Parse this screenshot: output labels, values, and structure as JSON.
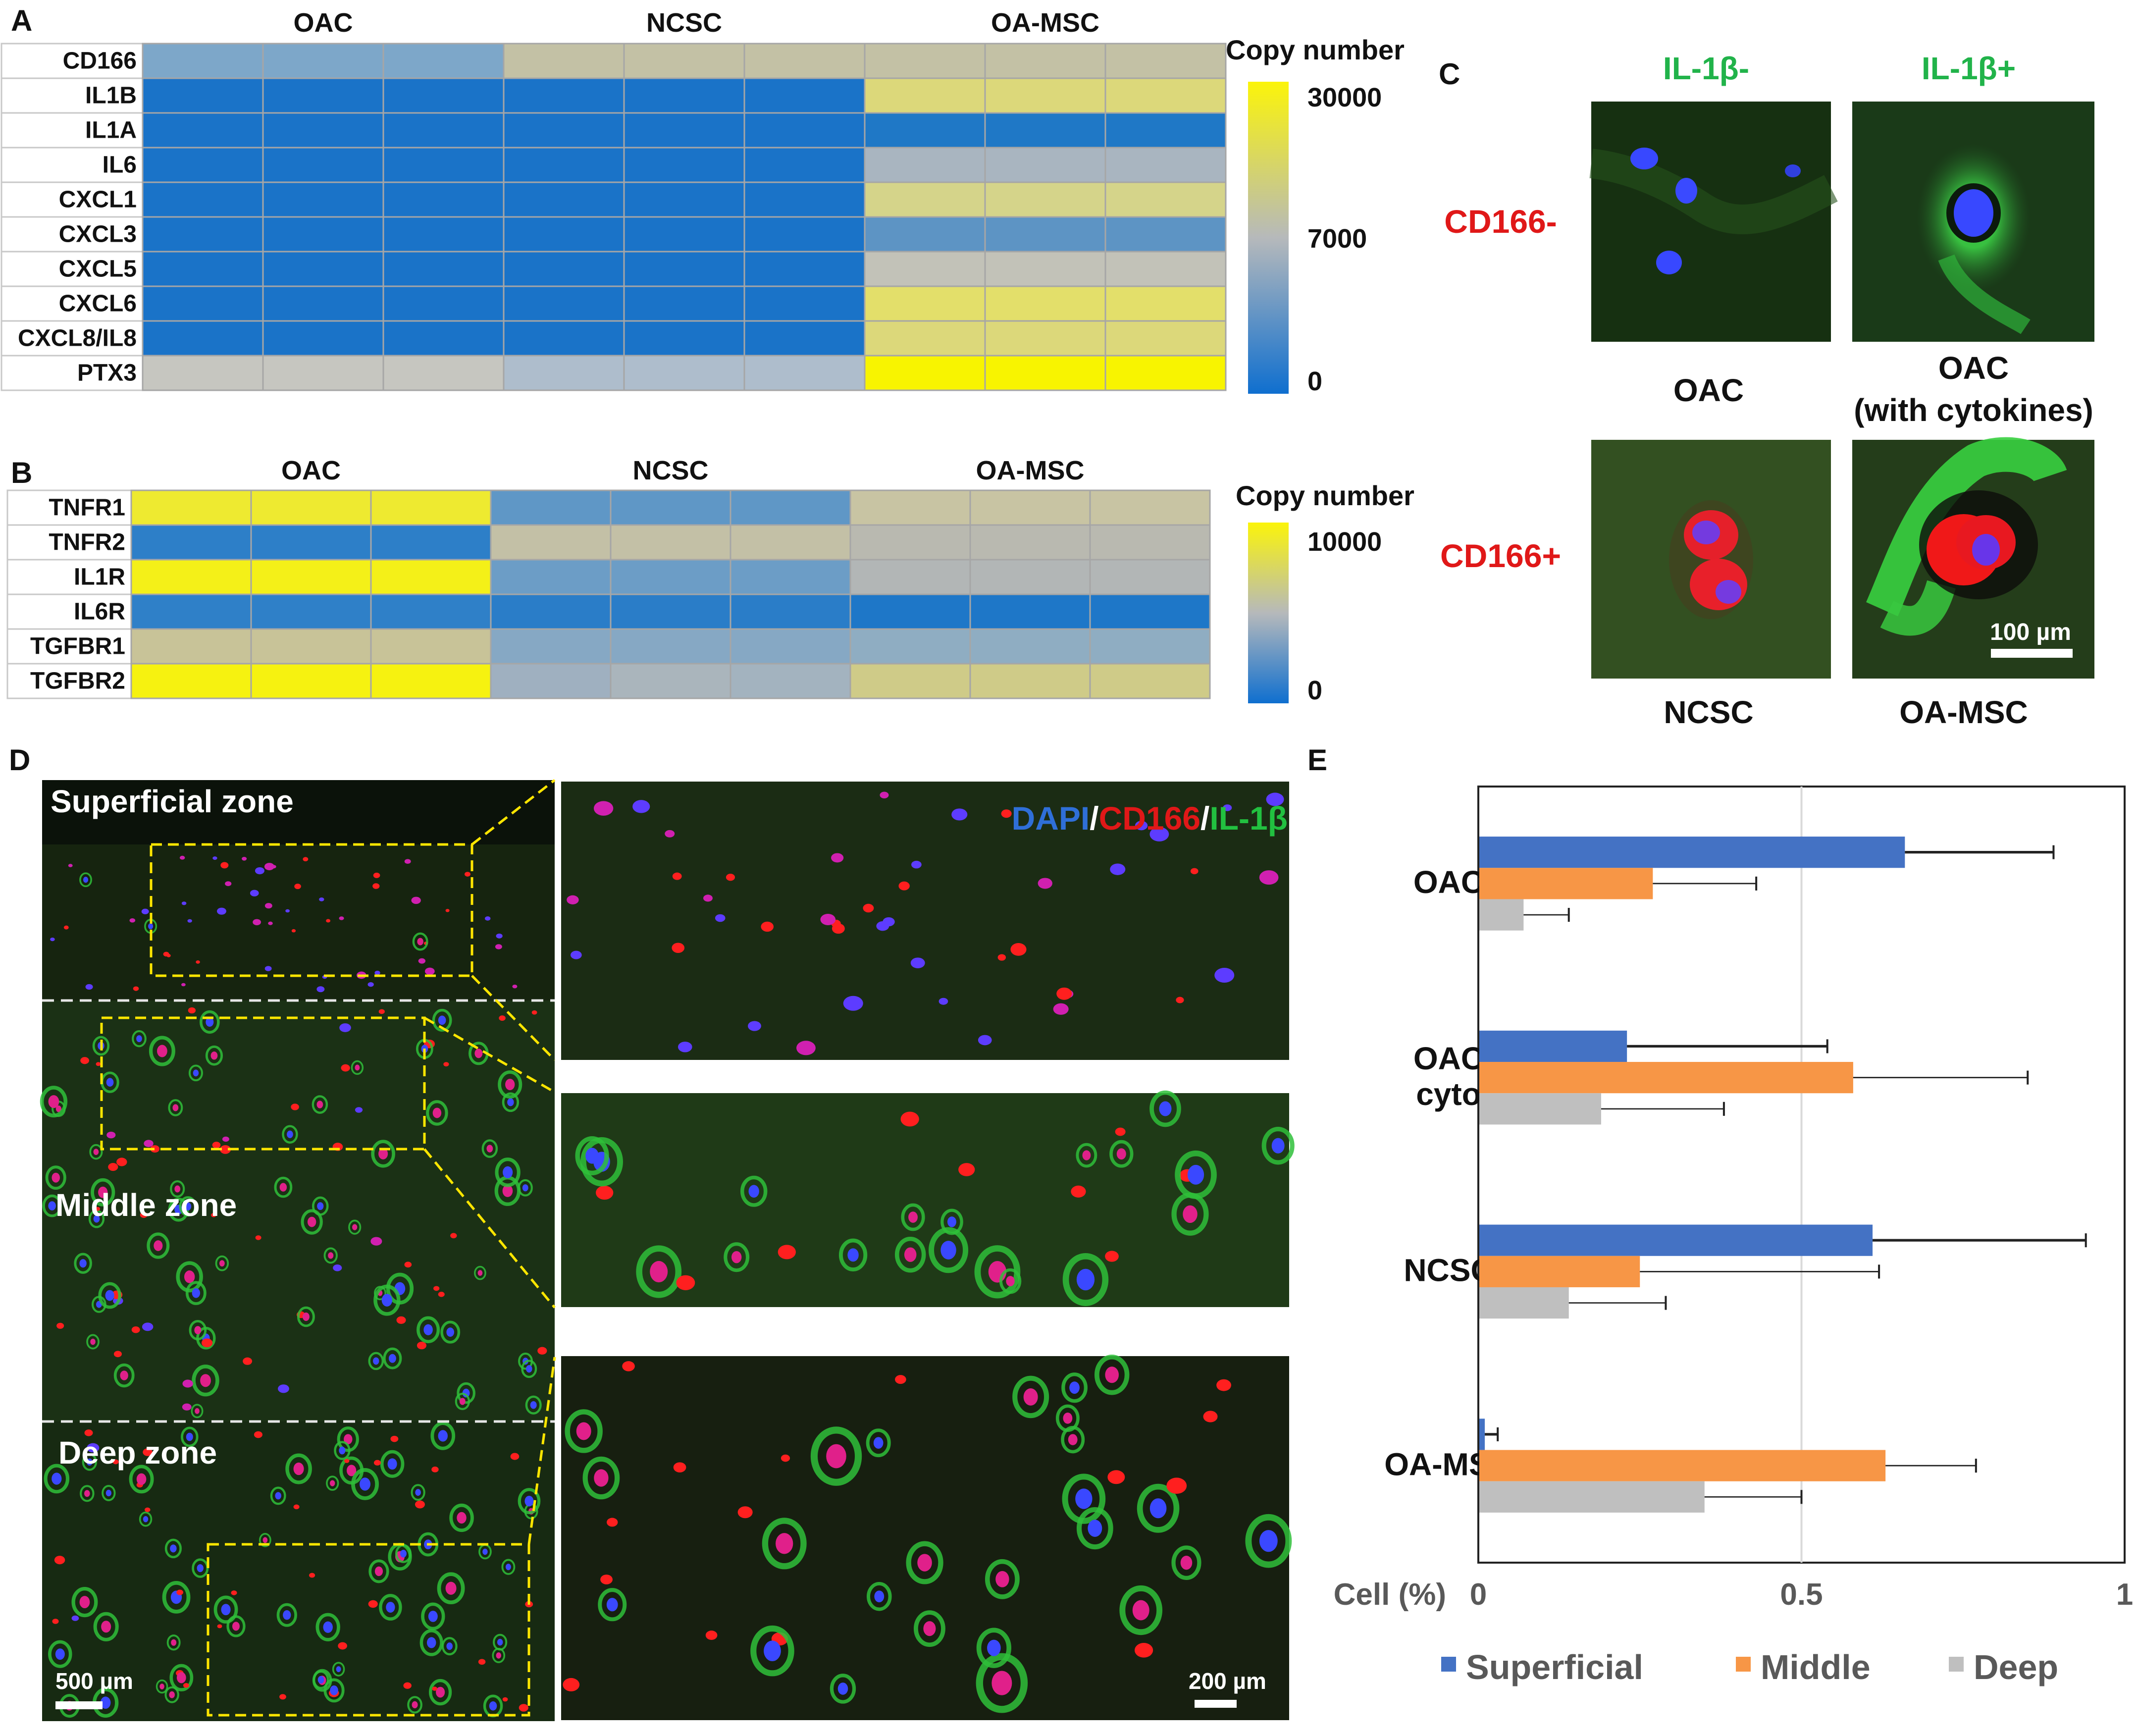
{
  "panels": {
    "A": {
      "letter": "A",
      "groups": [
        "OAC",
        "NCSC",
        "OA-MSC"
      ],
      "genes": [
        "CD166",
        "IL1B",
        "IL1A",
        "IL6",
        "CXCL1",
        "CXCL3",
        "CXCL5",
        "CXCL6",
        "CXCL8/IL8",
        "PTX3"
      ],
      "legend_title": "Copy number",
      "legend_ticks": [
        "30000",
        "7000",
        "0"
      ],
      "colors": [
        [
          "#7da7c9",
          "#7da7c9",
          "#7da7c9",
          "#c3c1a5",
          "#c3c1a5",
          "#c3c1a5",
          "#c3c1a5",
          "#c3c1a5",
          "#c3c1a5"
        ],
        [
          "#1a73c8",
          "#1a73c8",
          "#1a73c8",
          "#1a73c8",
          "#1a73c8",
          "#1a73c8",
          "#dcd87a",
          "#dcd87a",
          "#dcd87a"
        ],
        [
          "#1a73c8",
          "#1a73c8",
          "#1a73c8",
          "#1a73c8",
          "#1a73c8",
          "#1a73c8",
          "#1f78c6",
          "#1f78c6",
          "#1f78c6"
        ],
        [
          "#1a73c8",
          "#1a73c8",
          "#1a73c8",
          "#1a73c8",
          "#1a73c8",
          "#1a73c8",
          "#a9b5c0",
          "#a9b5c0",
          "#a9b5c0"
        ],
        [
          "#1a73c8",
          "#1a73c8",
          "#1a73c8",
          "#1a73c8",
          "#1a73c8",
          "#1a73c8",
          "#d5d48a",
          "#d5d48a",
          "#d5d48a"
        ],
        [
          "#1a73c8",
          "#1a73c8",
          "#1a73c8",
          "#1a73c8",
          "#1a73c8",
          "#1a73c8",
          "#5d94c4",
          "#5d94c4",
          "#5d94c4"
        ],
        [
          "#1a73c8",
          "#1a73c8",
          "#1a73c8",
          "#1a73c8",
          "#1a73c8",
          "#1a73c8",
          "#c2c2b8",
          "#c2c2b8",
          "#c2c2b8"
        ],
        [
          "#1a73c8",
          "#1a73c8",
          "#1a73c8",
          "#1a73c8",
          "#1a73c8",
          "#1a73c8",
          "#e3df6a",
          "#e3df6a",
          "#e3df6a"
        ],
        [
          "#1a73c8",
          "#1a73c8",
          "#1a73c8",
          "#1a73c8",
          "#1a73c8",
          "#1a73c8",
          "#dcd87a",
          "#dcd87a",
          "#dcd87a"
        ],
        [
          "#c6c6c0",
          "#c6c6c0",
          "#c6c6c0",
          "#aebdcc",
          "#aebdcc",
          "#aebdcc",
          "#f8f400",
          "#f8f400",
          "#f8f400"
        ]
      ]
    },
    "B": {
      "letter": "B",
      "groups": [
        "OAC",
        "NCSC",
        "OA-MSC"
      ],
      "genes": [
        "TNFR1",
        "TNFR2",
        "IL1R",
        "IL6R",
        "TGFBR1",
        "TGFBR2"
      ],
      "legend_title": "Copy number",
      "legend_ticks": [
        "10000",
        "0"
      ],
      "colors": [
        [
          "#eeea30",
          "#eeea30",
          "#eeea30",
          "#5f97c6",
          "#5f97c6",
          "#5f97c6",
          "#c8c4a3",
          "#c8c4a3",
          "#c8c4a3"
        ],
        [
          "#2d7fc8",
          "#2d7fc8",
          "#2d7fc8",
          "#c3c0a6",
          "#c3c0a6",
          "#c3c0a6",
          "#b9b9b0",
          "#b9b9b0",
          "#b9b9b0"
        ],
        [
          "#f4f018",
          "#f4f018",
          "#f4f018",
          "#6c9dc6",
          "#6c9dc6",
          "#6c9dc6",
          "#b2b6b6",
          "#b2b6b6",
          "#b2b6b6"
        ],
        [
          "#2f80c8",
          "#2f80c8",
          "#2f80c8",
          "#2a7dc8",
          "#2a7dc8",
          "#2a7dc8",
          "#1e77c8",
          "#1e77c8",
          "#1e77c8"
        ],
        [
          "#c8c398",
          "#c8c398",
          "#c8c398",
          "#86a8c4",
          "#86a8c4",
          "#86a8c4",
          "#8fadc2",
          "#8fadc2",
          "#8fadc2"
        ],
        [
          "#f6f210",
          "#f6f210",
          "#f6f210",
          "#9fb0c0",
          "#aab5bc",
          "#a3b3bf",
          "#cfcb88",
          "#cfcb88",
          "#cfcb88"
        ]
      ]
    },
    "C": {
      "letter": "C",
      "col_labels": [
        "IL-1β-",
        "IL-1β+"
      ],
      "row_labels": [
        "CD166-",
        "CD166+"
      ],
      "captions": [
        "OAC",
        "OAC",
        "(with cytokines)",
        "NCSC",
        "OA-MSC"
      ],
      "scale_bar": "100 µm"
    },
    "D": {
      "letter": "D",
      "zones": [
        "Superficial zone",
        "Middle zone",
        "Deep zone"
      ],
      "stain": [
        "DAPI",
        "/",
        "CD166",
        "/",
        "IL-1β"
      ],
      "stain_colors": [
        "#2f6fd8",
        "#ffffff",
        "#e01818",
        "#ffffff",
        "#22c040"
      ],
      "scale_bar_left": "500 µm",
      "scale_bar_right": "200 µm"
    },
    "E": {
      "letter": "E",
      "axis_label": "Cell (%)"
    }
  },
  "chart_data": {
    "type": "bar",
    "orientation": "horizontal",
    "categories": [
      "OAC",
      "OAC cyto",
      "NCSC",
      "OA-MSC"
    ],
    "category_lines": [
      [
        "OAC"
      ],
      [
        "OAC",
        "cyto"
      ],
      [
        "NCSC"
      ],
      [
        "OA-MSC"
      ]
    ],
    "series": [
      {
        "name": "Superficial",
        "color": "#4472c4",
        "values": [
          0.66,
          0.23,
          0.61,
          0.01
        ],
        "errors": [
          0.23,
          0.31,
          0.33,
          0.02
        ]
      },
      {
        "name": "Middle",
        "color": "#f79646",
        "values": [
          0.27,
          0.58,
          0.25,
          0.63
        ],
        "errors": [
          0.16,
          0.27,
          0.37,
          0.14
        ]
      },
      {
        "name": "Deep",
        "color": "#bfbfbf",
        "values": [
          0.07,
          0.19,
          0.14,
          0.35
        ],
        "errors": [
          0.07,
          0.19,
          0.15,
          0.15
        ]
      }
    ],
    "xlim": [
      0,
      1
    ],
    "xticks": [
      "0",
      "0.5",
      "1"
    ],
    "xlabel": "Cell (%)",
    "legend": "bottom",
    "grid": "vertical at 0.5"
  }
}
